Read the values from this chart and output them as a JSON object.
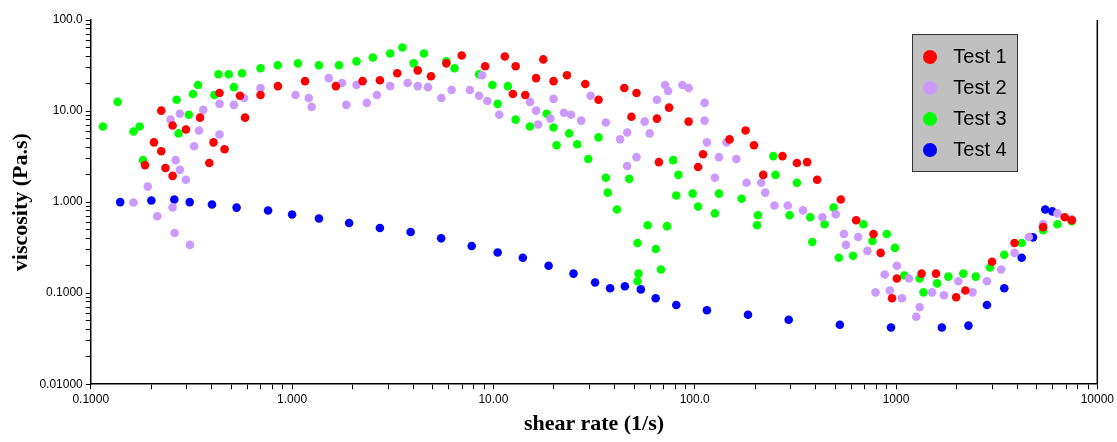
{
  "chart_data": {
    "type": "scatter",
    "xlabel": "shear rate (1/s)",
    "ylabel": "viscosity (Pa.s)",
    "log": "xy",
    "grid": false,
    "legend": "top right",
    "marker": "circle",
    "xlim": [
      0.1,
      10000
    ],
    "ylim": [
      0.01,
      100
    ],
    "xticks": [
      {
        "value": 0.1,
        "label": "0.1000"
      },
      {
        "value": 0.2,
        "label": null
      },
      {
        "value": 0.3,
        "label": null
      },
      {
        "value": 0.4,
        "label": null
      },
      {
        "value": 0.5,
        "label": null
      },
      {
        "value": 0.6,
        "label": null
      },
      {
        "value": 0.7,
        "label": null
      },
      {
        "value": 0.8,
        "label": null
      },
      {
        "value": 0.9,
        "label": null
      },
      {
        "value": 1,
        "label": "1.000"
      },
      {
        "value": 2,
        "label": null
      },
      {
        "value": 3,
        "label": null
      },
      {
        "value": 4,
        "label": null
      },
      {
        "value": 5,
        "label": null
      },
      {
        "value": 6,
        "label": null
      },
      {
        "value": 7,
        "label": null
      },
      {
        "value": 8,
        "label": null
      },
      {
        "value": 9,
        "label": null
      },
      {
        "value": 10,
        "label": "10.00"
      },
      {
        "value": 20,
        "label": null
      },
      {
        "value": 30,
        "label": null
      },
      {
        "value": 40,
        "label": null
      },
      {
        "value": 50,
        "label": null
      },
      {
        "value": 60,
        "label": null
      },
      {
        "value": 70,
        "label": null
      },
      {
        "value": 80,
        "label": null
      },
      {
        "value": 90,
        "label": null
      },
      {
        "value": 100,
        "label": "100.0"
      },
      {
        "value": 200,
        "label": null
      },
      {
        "value": 300,
        "label": null
      },
      {
        "value": 400,
        "label": null
      },
      {
        "value": 500,
        "label": null
      },
      {
        "value": 600,
        "label": null
      },
      {
        "value": 700,
        "label": null
      },
      {
        "value": 800,
        "label": null
      },
      {
        "value": 900,
        "label": null
      },
      1000,
      {
        "value": 2000,
        "label": null
      },
      {
        "value": 3000,
        "label": null
      },
      {
        "value": 4000,
        "label": null
      },
      {
        "value": 5000,
        "label": null
      },
      {
        "value": 6000,
        "label": null
      },
      {
        "value": 7000,
        "label": null
      },
      {
        "value": 8000,
        "label": null
      },
      {
        "value": 9000,
        "label": null
      },
      10000
    ],
    "yticks": [
      {
        "value": 0.01,
        "label": "0.01000"
      },
      {
        "value": 0.02,
        "label": null
      },
      {
        "value": 0.03,
        "label": null
      },
      {
        "value": 0.04,
        "label": null
      },
      {
        "value": 0.05,
        "label": null
      },
      {
        "value": 0.06,
        "label": null
      },
      {
        "value": 0.07,
        "label": null
      },
      {
        "value": 0.08,
        "label": null
      },
      {
        "value": 0.09,
        "label": null
      },
      {
        "value": 0.1,
        "label": "0.1000"
      },
      {
        "value": 0.2,
        "label": null
      },
      {
        "value": 0.3,
        "label": null
      },
      {
        "value": 0.4,
        "label": null
      },
      {
        "value": 0.5,
        "label": null
      },
      {
        "value": 0.6,
        "label": null
      },
      {
        "value": 0.7,
        "label": null
      },
      {
        "value": 0.8,
        "label": null
      },
      {
        "value": 0.9,
        "label": null
      },
      {
        "value": 1,
        "label": "1.000"
      },
      {
        "value": 2,
        "label": null
      },
      {
        "value": 3,
        "label": null
      },
      {
        "value": 4,
        "label": null
      },
      {
        "value": 5,
        "label": null
      },
      {
        "value": 6,
        "label": null
      },
      {
        "value": 7,
        "label": null
      },
      {
        "value": 8,
        "label": null
      },
      {
        "value": 9,
        "label": null
      },
      {
        "value": 10,
        "label": "10.00"
      },
      {
        "value": 20,
        "label": null
      },
      {
        "value": 30,
        "label": null
      },
      {
        "value": 40,
        "label": null
      },
      {
        "value": 50,
        "label": null
      },
      {
        "value": 60,
        "label": null
      },
      {
        "value": 70,
        "label": null
      },
      {
        "value": 80,
        "label": null
      },
      {
        "value": 90,
        "label": null
      },
      {
        "value": 100,
        "label": "100.0"
      }
    ],
    "series": [
      {
        "name": "Test 1",
        "color": "#ff0000",
        "x": [
          0.186,
          0.206,
          0.224,
          0.224,
          0.235,
          0.255,
          0.255,
          0.297,
          0.349,
          0.388,
          0.407,
          0.436,
          0.462,
          0.551,
          0.584,
          0.697,
          0.85,
          1.16,
          1.65,
          2.24,
          2.73,
          3.33,
          4.21,
          4.9,
          5.84,
          6.96,
          9.1,
          11.4,
          12.5,
          12.9,
          14.4,
          16.3,
          17.7,
          19.9,
          23.2,
          28.6,
          33.3,
          44.7,
          48.5,
          51.4,
          64.9,
          66.4,
          74.6,
          93.3,
          104,
          110,
          149,
          179,
          197,
          219,
          273,
          322,
          362,
          406,
          532,
          634,
          773,
          839,
          955,
          1010,
          1340,
          1580,
          1990,
          2210,
          3000,
          3880,
          5380,
          6890,
          7470
        ],
        "values": [
          2.55,
          4.53,
          10.1,
          3.62,
          2.37,
          6.93,
          1.94,
          6.27,
          8.46,
          2.69,
          4.53,
          15.8,
          3.81,
          14.7,
          8.46,
          15.0,
          18.8,
          21.3,
          18.8,
          21.3,
          21.8,
          26.0,
          28.0,
          24.1,
          33.4,
          40.7,
          31.0,
          39.7,
          15.4,
          31.0,
          15.0,
          23.0,
          36.9,
          21.3,
          24.7,
          19.8,
          13.3,
          17.9,
          8.67,
          15.8,
          8.26,
          2.75,
          10.9,
          7.66,
          2.43,
          3.36,
          4.89,
          6.12,
          4.21,
          1.99,
          3.2,
          2.69,
          2.75,
          1.76,
          1.07,
          0.632,
          0.446,
          0.277,
          0.088,
          0.145,
          0.164,
          0.164,
          0.09,
          0.107,
          0.221,
          0.356,
          0.531,
          0.681,
          0.632
        ]
      },
      {
        "name": "Test 2",
        "color": "#cc99ff",
        "x": [
          0.163,
          0.192,
          0.214,
          0.249,
          0.255,
          0.261,
          0.264,
          0.277,
          0.277,
          0.297,
          0.311,
          0.326,
          0.345,
          0.362,
          0.436,
          0.436,
          0.514,
          0.577,
          0.697,
          0.849,
          1.04,
          1.21,
          1.25,
          1.52,
          1.77,
          1.86,
          2.09,
          2.35,
          2.64,
          3.07,
          3.75,
          4.21,
          4.73,
          5.51,
          6.2,
          7.64,
          8.49,
          8.79,
          9.33,
          10.7,
          15.2,
          16.3,
          16.7,
          19.2,
          19.9,
          22.4,
          24.3,
          27.3,
          30.4,
          36.2,
          42.6,
          46.2,
          46.2,
          51.4,
          56.4,
          59.8,
          64.9,
          71.3,
          73.8,
          86.9,
          93.3,
          112,
          112,
          115,
          126,
          132,
          144,
          161,
          181,
          214,
          224,
          249,
          290,
          345,
          431,
          502,
          551,
          564,
          649,
          721,
          791,
          879,
          933,
          1010,
          1070,
          1160,
          1260,
          1310,
          1510,
          1730,
          2040,
          2400,
          2830,
          3330,
          3880,
          4570,
          5380,
          6340,
          7470
        ],
        "values": [
          0.99,
          1.48,
          0.698,
          8.05,
          0.875,
          0.457,
          2.89,
          9.35,
          2.26,
          1.76,
          0.339,
          4.1,
          6.12,
          10.3,
          5.53,
          12.0,
          11.7,
          13.9,
          17.9,
          null,
          15.0,
          13.9,
          11.1,
          23.0,
          20.3,
          11.7,
          19.3,
          12.3,
          15.0,
          18.8,
          20.3,
          18.8,
          18.3,
          13.9,
          17.0,
          17.0,
          14.7,
          24.7,
          12.9,
          9.12,
          12.6,
          10.1,
          7.11,
          8.26,
          13.6,
          9.59,
          9.12,
          7.85,
          14.7,
          7.47,
          4.89,
          5.82,
          2.49,
          3.12,
          7.66,
          5.68,
          13.3,
          19.3,
          16.6,
          19.3,
          17.9,
          12.3,
          7.85,
          4.53,
          1.85,
          3.12,
          4.53,
          2.97,
          1.63,
          1.63,
          1.27,
          0.918,
          0.918,
          0.811,
          0.681,
          0.734,
          0.446,
          0.339,
          0.413,
          0.291,
          0.102,
          0.16,
          0.107,
          0.2,
          0.088,
          0.145,
          0.055,
          0.07,
          0.102,
          0.095,
          0.135,
          0.102,
          0.135,
          0.182,
          0.277,
          0.413,
          0.572,
          0.751,
          0.647
        ]
      },
      {
        "name": "Test 3",
        "color": "#00ff00",
        "x": [
          0.115,
          0.136,
          0.163,
          0.175,
          0.182,
          0.267,
          0.273,
          0.307,
          0.322,
          0.341,
          0.411,
          0.431,
          0.484,
          0.514,
          0.564,
          0.697,
          0.849,
          1.07,
          1.36,
          1.71,
          2.09,
          2.52,
          3.07,
          3.53,
          4.02,
          4.52,
          5.84,
          6.41,
          8.49,
          9.89,
          10.5,
          11.8,
          12.9,
          15.2,
          18.4,
          19.9,
          20.6,
          23.8,
          26.1,
          29.6,
          33.3,
          36.2,
          37.0,
          41.1,
          47.3,
          52.0,
          52.6,
          52.0,
          58.4,
          64.1,
          68.0,
          72.9,
          78.2,
          81.0,
          83.0,
          97.7,
          104,
          126,
          132,
          171,
          204,
          206,
          246,
          252,
          296,
          322,
          375,
          384,
          442,
          490,
          520,
          612,
          689,
          764,
          900,
          988,
          1100,
          1310,
          1370,
          1600,
          1820,
          2160,
          2490,
          2930,
          3450,
          4210,
          5380,
          6340,
          7470
        ],
        "values": [
          6.76,
          12.6,
          5.97,
          6.76,
          2.89,
          13.3,
          5.68,
          9.12,
          15.4,
          19.3,
          15.0,
          25.4,
          25.4,
          18.3,
          26.0,
          29.5,
          31.8,
          33.4,
          31.8,
          31.8,
          35.1,
          38.8,
          42.8,
          49.8,
          33.4,
          42.8,
          35.1,
          29.5,
          25.4,
          19.3,
          12.0,
          18.8,
          8.05,
          6.76,
          9.35,
          6.59,
          4.21,
          5.68,
          4.32,
          2.97,
          5.14,
          1.85,
          1.27,
          0.828,
          1.8,
          0.356,
          0.164,
          0.135,
          0.557,
          0.306,
          0.182,
          0.544,
          2.89,
          1.18,
          1.99,
          1.24,
          0.893,
          0.751,
          1.24,
          1.09,
          0.557,
          0.716,
          3.2,
          1.99,
          0.716,
          1.63,
          0.681,
          0.365,
          0.572,
          0.873,
          0.245,
          0.257,
          0.572,
          0.374,
          0.446,
          0.314,
          0.156,
          0.145,
          0.102,
          0.128,
          0.152,
          0.164,
          0.152,
          0.191,
          0.264,
          0.356,
          0.492,
          0.572,
          0.617
        ]
      },
      {
        "name": "Test 4",
        "color": "#0000ff",
        "x": [
          0.14,
          0.2,
          0.26,
          0.31,
          0.4,
          0.53,
          0.76,
          1.0,
          1.36,
          1.92,
          2.73,
          3.88,
          5.5,
          7.8,
          10.5,
          14,
          18.8,
          25,
          32,
          38,
          45,
          54,
          64,
          81,
          115,
          184,
          293,
          526,
          944,
          1690,
          2290,
          2830,
          3450,
          4210,
          4790,
          5510,
          5980
        ],
        "values": [
          1.0,
          1.04,
          1.07,
          1.0,
          0.94,
          0.87,
          0.81,
          0.73,
          0.66,
          0.59,
          0.52,
          0.47,
          0.4,
          0.33,
          0.28,
          0.245,
          0.2,
          0.164,
          0.131,
          0.113,
          0.119,
          0.11,
          0.088,
          0.074,
          0.065,
          0.058,
          0.051,
          0.045,
          0.042,
          0.042,
          0.044,
          0.074,
          0.113,
          0.245,
          0.41,
          0.83,
          0.79
        ]
      }
    ]
  }
}
